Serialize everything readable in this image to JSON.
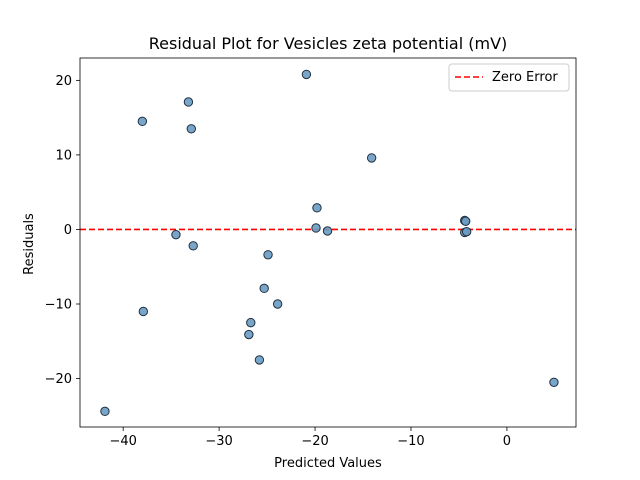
{
  "chart_data": {
    "type": "scatter",
    "title": "Residual Plot for Vesicles zeta potential (mV)",
    "xlabel": "Predicted Values",
    "ylabel": "Residuals",
    "xlim": [
      -44.5,
      7.2
    ],
    "ylim": [
      -26.5,
      23.0
    ],
    "xticks": [
      -40,
      -30,
      -20,
      -10,
      0
    ],
    "yticks": [
      -20,
      -10,
      0,
      10,
      20
    ],
    "grid": false,
    "legend": {
      "position": "top-right",
      "entries": [
        "Zero Error"
      ]
    },
    "reference_line": {
      "y": 0,
      "label": "Zero Error",
      "style": "dashed",
      "color": "#ff0000"
    },
    "series": [
      {
        "marker_color": "#6a9bc3",
        "edge_color": "#1f2f3f",
        "points": [
          {
            "x": -41.9,
            "y": -24.4
          },
          {
            "x": -38.0,
            "y": 14.5
          },
          {
            "x": -37.9,
            "y": -11.0
          },
          {
            "x": -34.5,
            "y": -0.7
          },
          {
            "x": -33.2,
            "y": 17.1
          },
          {
            "x": -32.9,
            "y": 13.5
          },
          {
            "x": -32.7,
            "y": -2.2
          },
          {
            "x": -26.9,
            "y": -14.1
          },
          {
            "x": -26.7,
            "y": -12.5
          },
          {
            "x": -25.8,
            "y": -17.5
          },
          {
            "x": -25.3,
            "y": -7.9
          },
          {
            "x": -24.9,
            "y": -3.4
          },
          {
            "x": -23.9,
            "y": -10.0
          },
          {
            "x": -20.9,
            "y": 20.8
          },
          {
            "x": -19.8,
            "y": 2.9
          },
          {
            "x": -19.9,
            "y": 0.2
          },
          {
            "x": -18.7,
            "y": -0.2
          },
          {
            "x": -14.1,
            "y": 9.6
          },
          {
            "x": -4.4,
            "y": 1.2
          },
          {
            "x": -4.3,
            "y": 1.1
          },
          {
            "x": -4.4,
            "y": -0.4
          },
          {
            "x": -4.2,
            "y": -0.3
          },
          {
            "x": 4.9,
            "y": -20.5
          }
        ]
      }
    ]
  }
}
